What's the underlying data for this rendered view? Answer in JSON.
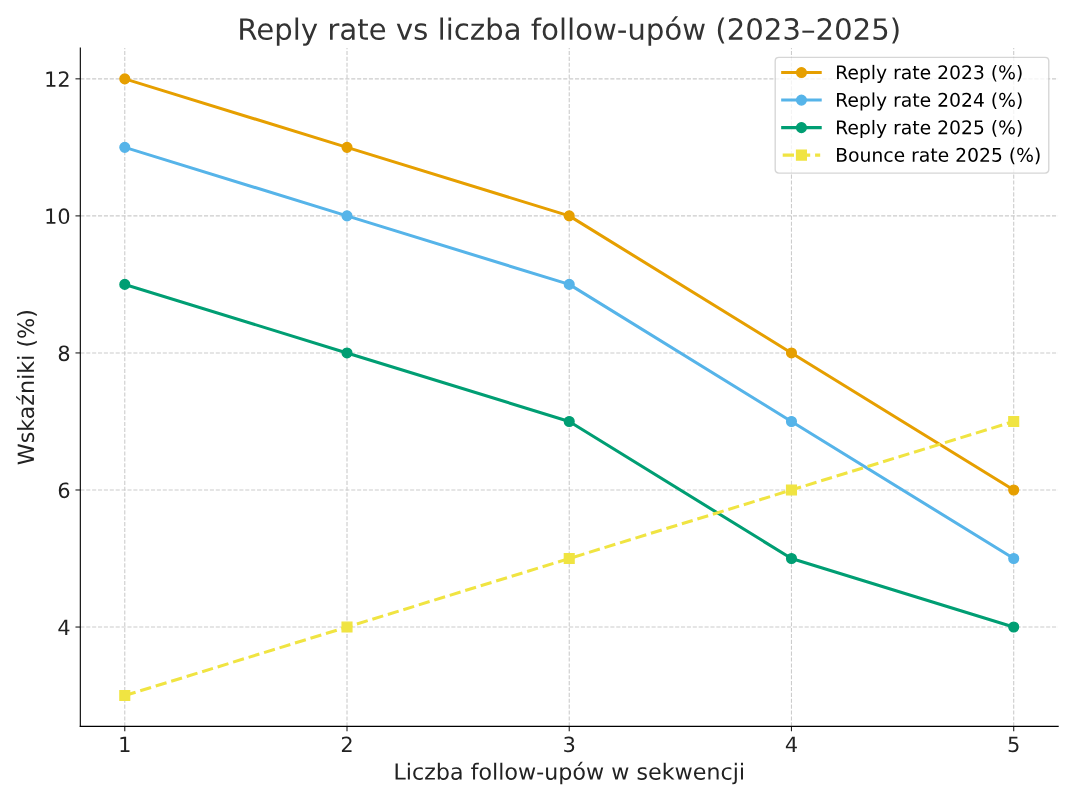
{
  "chart_data": {
    "type": "line",
    "title": "Reply rate vs liczba follow-upów (2023–2025)",
    "xlabel": "Liczba follow-upów w sekwencji",
    "ylabel": "Wskaźniki (%)",
    "x": [
      1,
      2,
      3,
      4,
      5
    ],
    "xlim": [
      0.8,
      5.2
    ],
    "xticks": [
      1,
      2,
      3,
      4,
      5
    ],
    "ylim": [
      2.55,
      12.45
    ],
    "yticks": [
      4,
      6,
      8,
      10,
      12
    ],
    "grid": true,
    "legend": "top right",
    "series": [
      {
        "name": "Reply rate 2023 (%)",
        "color": "#e69f00",
        "values": [
          12,
          11,
          10,
          8,
          6
        ],
        "marker": "circle",
        "line_style": "solid"
      },
      {
        "name": "Reply rate 2024 (%)",
        "color": "#56b4e9",
        "values": [
          11,
          10,
          9,
          7,
          5
        ],
        "marker": "circle",
        "line_style": "solid"
      },
      {
        "name": "Reply rate 2025 (%)",
        "color": "#009e73",
        "values": [
          9,
          8,
          7,
          5,
          4
        ],
        "marker": "circle",
        "line_style": "solid"
      },
      {
        "name": "Bounce rate 2025 (%)",
        "color": "#f0e442",
        "values": [
          3,
          4,
          5,
          6,
          7
        ],
        "marker": "square",
        "line_style": "dashed"
      }
    ]
  }
}
